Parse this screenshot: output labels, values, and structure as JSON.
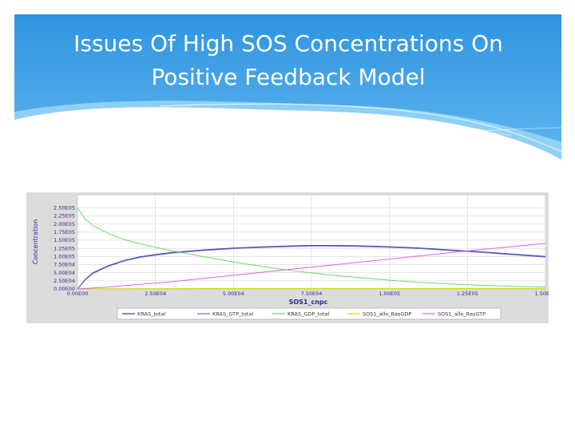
{
  "slide": {
    "title_lines": [
      "Issues Of High SOS Concentrations On",
      "Positive Feedback Model"
    ],
    "colors": {
      "header": "#3aa0e8",
      "header_light": "#8fd0f5",
      "chart_bg": "#ffffff",
      "panel": "#dcdcdc"
    }
  },
  "chart_data": {
    "type": "line",
    "xlabel": "SOS1_cnpc",
    "ylabel": "Concentration",
    "xlim": [
      0,
      150000
    ],
    "ylim": [
      0,
      290000
    ],
    "x_ticks": [
      0,
      25000,
      50000,
      75000,
      100000,
      125000,
      150000
    ],
    "x_tick_labels": [
      "0.00E00",
      "2.50E04",
      "5.00E04",
      "7.50E04",
      "1.00E05",
      "1.25E05",
      "1.50E05"
    ],
    "y_ticks": [
      0,
      25000,
      50000,
      75000,
      100000,
      125000,
      150000,
      175000,
      200000,
      225000,
      250000
    ],
    "y_tick_labels": [
      "0.00E00",
      "2.50E04",
      "5.00E04",
      "7.50E04",
      "1.00E05",
      "1.25E05",
      "1.50E05",
      "1.75E05",
      "2.00E05",
      "2.25E05",
      "2.50E05"
    ],
    "grid": true,
    "legend_position": "bottom",
    "x": [
      0,
      2500,
      5000,
      10000,
      15000,
      20000,
      25000,
      30000,
      40000,
      50000,
      60000,
      70000,
      75000,
      80000,
      90000,
      100000,
      110000,
      120000,
      130000,
      140000,
      150000
    ],
    "series": [
      {
        "name": "KRAS_total",
        "color": "#3a3aa8",
        "values": [
          0,
          30000,
          50000,
          72000,
          88000,
          99000,
          106000,
          112000,
          120000,
          126000,
          130000,
          133000,
          134000,
          134000,
          133000,
          130000,
          126000,
          120000,
          114000,
          107000,
          100000
        ]
      },
      {
        "name": "KRAS_GTP_total",
        "color": "#6a6ad0",
        "values": [
          0,
          28000,
          48000,
          70000,
          86000,
          97000,
          104000,
          110000,
          118000,
          124000,
          128000,
          131000,
          132000,
          132000,
          131000,
          128000,
          124000,
          118000,
          112000,
          105000,
          98000
        ]
      },
      {
        "name": "KRAS_GDP_total",
        "color": "#66dd66",
        "values": [
          250000,
          215000,
          195000,
          170000,
          152000,
          139000,
          128000,
          118000,
          100000,
          83000,
          68000,
          55000,
          50000,
          44000,
          35000,
          27000,
          20000,
          15000,
          11000,
          8000,
          6000
        ]
      },
      {
        "name": "SOS1_allo_RasGDP",
        "color": "#d8d800",
        "values": [
          0,
          200,
          400,
          600,
          800,
          900,
          1000,
          1100,
          1200,
          1300,
          1400,
          1500,
          1500,
          1500,
          1500,
          1500,
          1500,
          1500,
          1500,
          1500,
          1500
        ]
      },
      {
        "name": "SOS1_allo_RasGTP",
        "color": "#e060e0",
        "values": [
          0,
          1500,
          3000,
          6000,
          10000,
          14000,
          18000,
          22000,
          32000,
          42000,
          52000,
          62000,
          67000,
          72000,
          82000,
          92000,
          102000,
          112000,
          122000,
          131000,
          140000
        ]
      }
    ]
  }
}
